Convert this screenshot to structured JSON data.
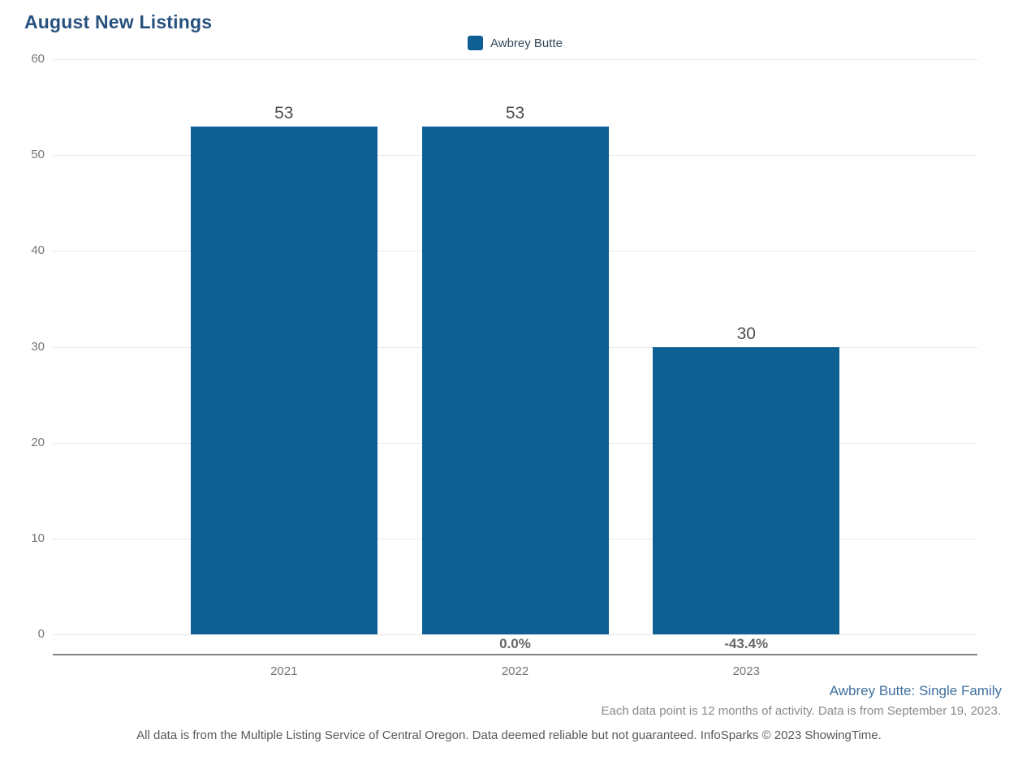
{
  "page": {
    "title": "August New Listings",
    "footer": {
      "series_note": "Awbrey Butte: Single Family",
      "data_note": "Each data point is 12 months of activity. Data is from September 19, 2023.",
      "disclaimer": "All data is from the Multiple Listing Service of Central Oregon. Data deemed reliable but not guaranteed. InfoSparks © 2023 ShowingTime."
    }
  },
  "legend": {
    "items": [
      {
        "label": "Awbrey Butte",
        "color": "#0e6094"
      }
    ]
  },
  "chart_data": {
    "type": "bar",
    "title": "August New Listings",
    "categories": [
      "2021",
      "2022",
      "2023"
    ],
    "series": [
      {
        "name": "Awbrey Butte",
        "values": [
          53,
          53,
          30
        ],
        "color": "#0e6094"
      }
    ],
    "value_labels": [
      "53",
      "53",
      "30"
    ],
    "pct_change_labels": [
      "",
      "0.0%",
      "-43.4%"
    ],
    "xlabel": "",
    "ylabel": "",
    "ylim": [
      0,
      60
    ],
    "yticks": [
      0,
      10,
      20,
      30,
      40,
      50,
      60
    ],
    "grid": "horizontal",
    "legend_position": "top-center",
    "colors": {
      "bar": "#0e6094",
      "title": "#27517e",
      "gridline": "#e7e7e7",
      "axis_line": "#818181",
      "tick_label": "#757575",
      "value_label": "#4d4d4d",
      "pct_label": "#666666",
      "series_note": "#40709f"
    }
  }
}
